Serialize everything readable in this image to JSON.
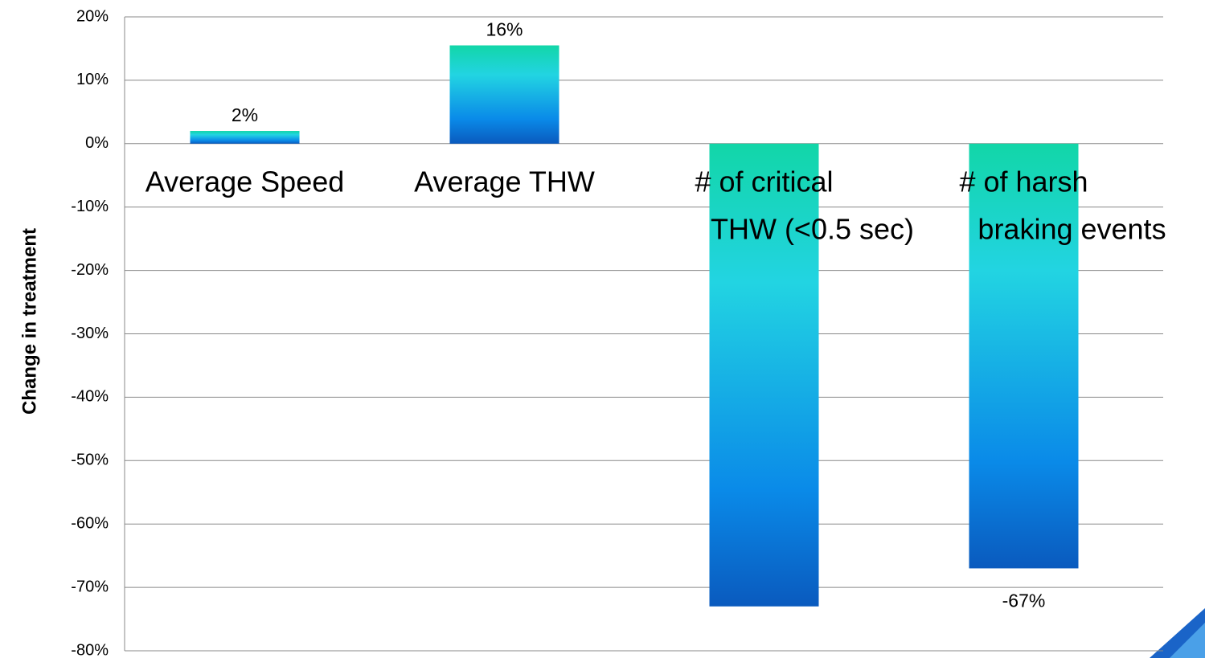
{
  "chart_data": {
    "type": "bar",
    "y_label": "Change in treatment",
    "categories": [
      [
        "Average Speed"
      ],
      [
        "Average THW"
      ],
      [
        "# of critical",
        "THW (<0.5 sec)"
      ],
      [
        "# of harsh",
        "braking events"
      ]
    ],
    "values": [
      2,
      15.5,
      -73,
      -67
    ],
    "value_labels": [
      "2%",
      "16%",
      null,
      "-67%"
    ],
    "colors": [
      "#12d6a8",
      "#22d4e2",
      "#0a8ae8",
      "#0a5abe"
    ],
    "ylim": [
      -80,
      20
    ],
    "yticks": [
      {
        "value": 20,
        "label": "20%"
      },
      {
        "value": 10,
        "label": "10%"
      },
      {
        "value": 0,
        "label": "0%"
      },
      {
        "value": -10,
        "label": "-10%"
      },
      {
        "value": -20,
        "label": "-20%"
      },
      {
        "value": -30,
        "label": "-30%"
      },
      {
        "value": -40,
        "label": "-40%"
      },
      {
        "value": -50,
        "label": "-50%"
      },
      {
        "value": -60,
        "label": "-60%"
      },
      {
        "value": -70,
        "label": "-70%"
      },
      {
        "value": -80,
        "label": "-80%"
      }
    ],
    "grid": true
  }
}
